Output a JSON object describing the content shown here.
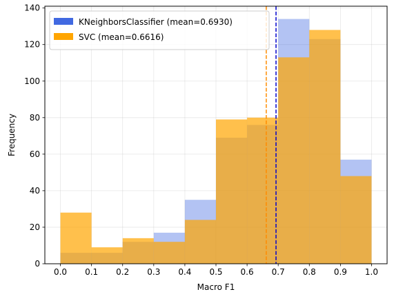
{
  "chart_data": {
    "type": "bar",
    "title": "",
    "xlabel": "Macro F1",
    "ylabel": "Frequency",
    "xlim": [
      -0.05,
      1.05
    ],
    "ylim": [
      0,
      141
    ],
    "xticks": [
      "0.0",
      "0.1",
      "0.2",
      "0.3",
      "0.4",
      "0.5",
      "0.6",
      "0.7",
      "0.8",
      "0.9",
      "1.0"
    ],
    "yticks": [
      "0",
      "20",
      "40",
      "60",
      "80",
      "100",
      "120",
      "140"
    ],
    "grid": true,
    "legend_position": "top-left",
    "bin_edges": [
      0.0,
      0.1,
      0.2,
      0.3,
      0.4,
      0.5,
      0.6,
      0.7,
      0.8,
      0.9,
      1.0
    ],
    "series": [
      {
        "name": "KNeighborsClassifier (mean=0.6930)",
        "values": [
          6,
          6,
          12,
          17,
          35,
          69,
          76,
          134,
          123,
          57
        ],
        "mean": 0.693,
        "color": "#4169e1",
        "fill_opacity": 0.4,
        "mean_line_color": "#0000cd"
      },
      {
        "name": "SVC (mean=0.6616)",
        "values": [
          28,
          9,
          14,
          12,
          24,
          79,
          80,
          113,
          128,
          48
        ],
        "mean": 0.6616,
        "color": "#ffa500",
        "fill_opacity": 0.7,
        "mean_line_color": "#ff8c00"
      }
    ]
  }
}
